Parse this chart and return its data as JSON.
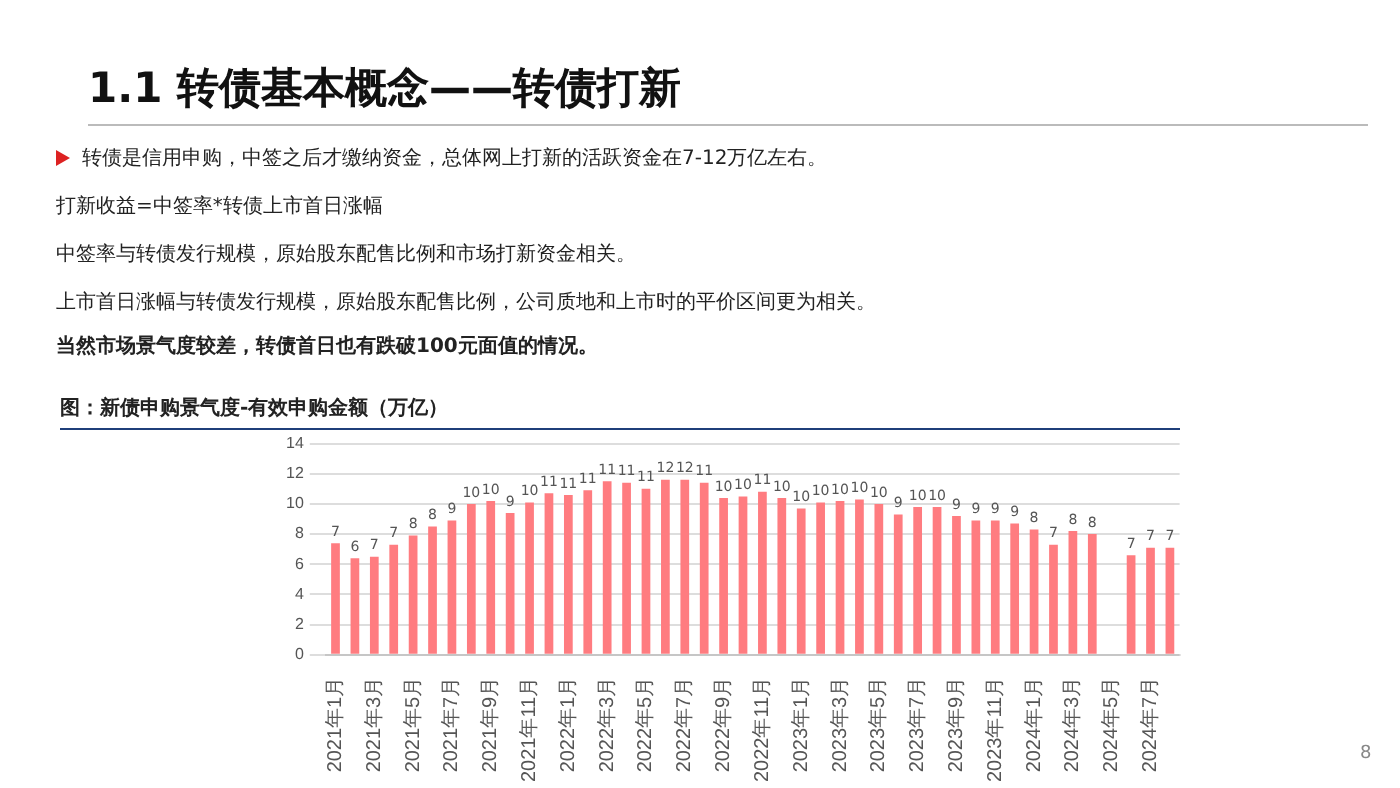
{
  "chart_data": {
    "type": "bar",
    "title": "1.1 转债基本概念——转债打新",
    "subtitle": "图：新债申购景气度-有效申购金额（万亿）",
    "annotations": [
      "转债是信用申购，中签之后才缴纳资金，总体网上打新的活跃资金在7-12万亿左右。",
      "打新收益=中签率*转债上市首日涨幅",
      "中签率与转债发行规模，原始股东配售比例和市场打新资金相关。",
      "上市首日涨幅与转债发行规模，原始股东配售比例，公司质地和上市时的平价区间更为相关。",
      "当然市场景气度较差，转债首日也有跌破100元面值的情况。",
      "8"
    ],
    "categories": [
      "2021年1月",
      null,
      "2021年3月",
      null,
      "2021年5月",
      null,
      "2021年7月",
      null,
      "2021年9月",
      null,
      "2021年11月",
      null,
      "2022年1月",
      null,
      "2022年3月",
      null,
      "2022年5月",
      null,
      "2022年7月",
      null,
      "2022年9月",
      null,
      "2022年11月",
      null,
      "2023年1月",
      null,
      "2023年3月",
      null,
      "2023年5月",
      null,
      "2023年7月",
      null,
      "2023年9月",
      null,
      "2023年11月",
      null,
      "2024年1月",
      null,
      "2024年3月",
      null,
      "2024年5月",
      null,
      "2024年7月",
      null
    ],
    "values": [
      7.4,
      6.4,
      6.5,
      7.3,
      7.9,
      8.5,
      8.9,
      10.0,
      10.2,
      9.4,
      10.1,
      10.7,
      10.6,
      10.9,
      11.5,
      11.4,
      11.0,
      11.6,
      11.6,
      11.4,
      10.4,
      10.5,
      10.8,
      10.4,
      9.7,
      10.1,
      10.2,
      10.3,
      10.0,
      9.3,
      9.8,
      9.8,
      9.2,
      8.9,
      8.9,
      8.7,
      8.3,
      7.3,
      8.2,
      8.0,
      null,
      6.6,
      7.1,
      7.1
    ],
    "value_labels": [
      "7",
      "6",
      "7",
      "7",
      "8",
      "8",
      "9",
      "10",
      "10",
      "9",
      "10",
      "11",
      "11",
      "11",
      "11",
      "11",
      "11",
      "12",
      "12",
      "11",
      "10",
      "10",
      "11",
      "10",
      "10",
      "10",
      "10",
      "10",
      "10",
      "9",
      "10",
      "10",
      "9",
      "9",
      "9",
      "9",
      "8",
      "7",
      "8",
      "8",
      null,
      "7",
      "7",
      "7"
    ],
    "color": "#ff7c80",
    "ylim": [
      0,
      14
    ],
    "yticks": [
      0,
      2,
      4,
      6,
      8,
      10,
      12,
      14
    ],
    "grid": "y",
    "legend": false
  }
}
